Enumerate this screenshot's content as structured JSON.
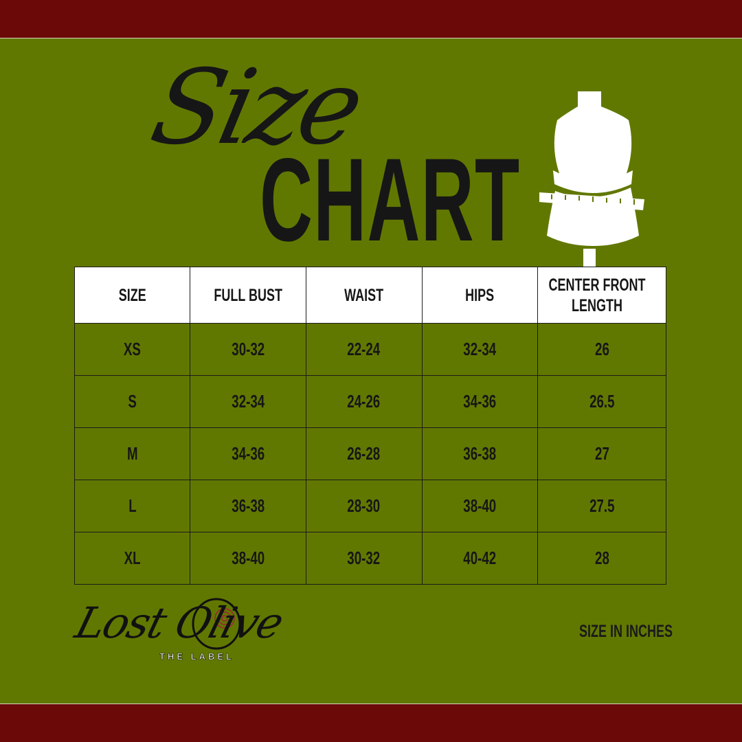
{
  "title_script": "Size",
  "title_bold": "CHART",
  "colors": {
    "background": "#617800",
    "band": "#6b0808",
    "text": "#161616",
    "header_bg": "#ffffff",
    "logo_swirl": "#a3203a"
  },
  "table": {
    "headers": [
      "SIZE",
      "FULL BUST",
      "WAIST",
      "HIPS",
      "CENTER FRONT LENGTH"
    ],
    "rows": [
      [
        "XS",
        "30-32",
        "22-24",
        "32-34",
        "26"
      ],
      [
        "S",
        "32-34",
        "24-26",
        "34-36",
        "26.5"
      ],
      [
        "M",
        "34-36",
        "26-28",
        "36-38",
        "27"
      ],
      [
        "L",
        "36-38",
        "28-30",
        "38-40",
        "27.5"
      ],
      [
        "XL",
        "38-40",
        "30-32",
        "40-42",
        "28"
      ]
    ]
  },
  "logo": {
    "name": "Lost Olive",
    "tagline": "THE LABEL"
  },
  "units_note": "SIZE IN INCHES",
  "icons": {
    "mannequin": "dress-form-with-measuring-tape-icon"
  }
}
